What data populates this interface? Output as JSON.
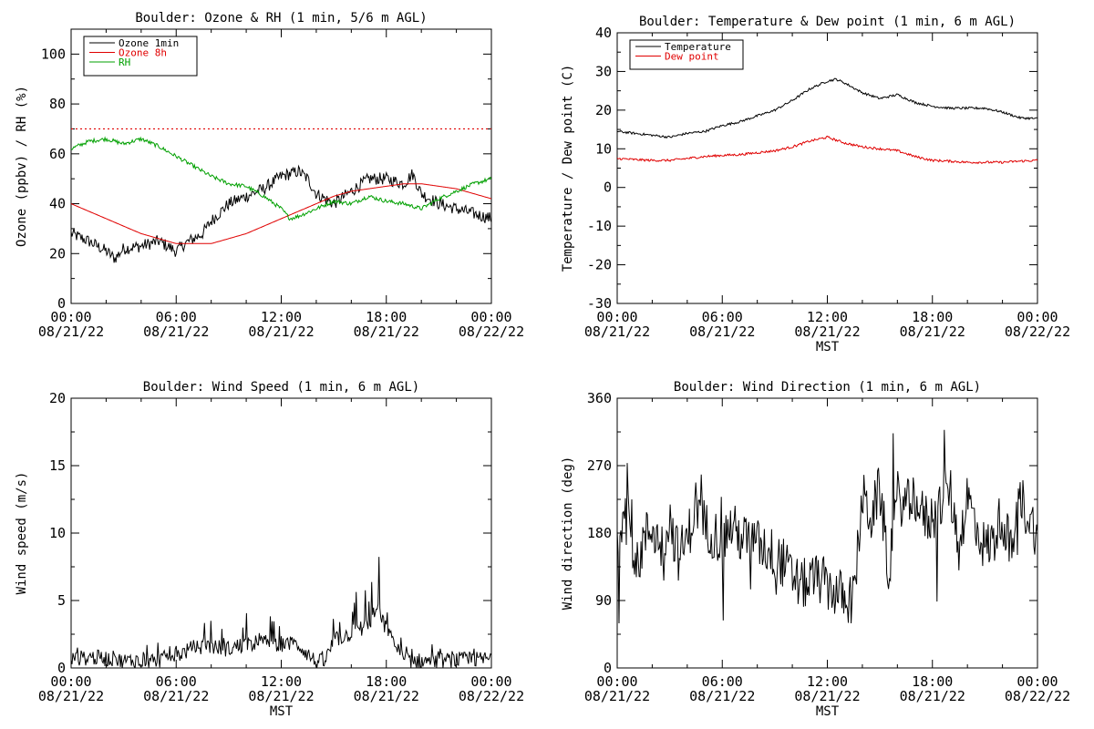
{
  "panels": {
    "ozone": {
      "title": "Boulder: Ozone & RH (1 min, 5/6 m AGL)",
      "ylabel": "Ozone (ppbv) / RH (%)",
      "xlabel": "",
      "y_ticks": [
        "0",
        "20",
        "40",
        "60",
        "80",
        "100"
      ],
      "x_ticks_time": [
        "00:00",
        "06:00",
        "12:00",
        "18:00",
        "00:00"
      ],
      "x_ticks_date": [
        "08/21/22",
        "08/21/22",
        "08/21/22",
        "08/21/22",
        "08/22/22"
      ],
      "legend": [
        {
          "label": "Ozone 1min",
          "color": "#000000"
        },
        {
          "label": "Ozone 8h",
          "color": "#e00000"
        },
        {
          "label": "RH",
          "color": "#00a000"
        }
      ]
    },
    "temp": {
      "title": "Boulder: Temperature & Dew point (1 min, 6 m AGL)",
      "ylabel": "Temperature / Dew point (C)",
      "xlabel": "MST",
      "y_ticks": [
        "-30",
        "-20",
        "-10",
        "0",
        "10",
        "20",
        "30",
        "40"
      ],
      "x_ticks_time": [
        "00:00",
        "06:00",
        "12:00",
        "18:00",
        "00:00"
      ],
      "x_ticks_date": [
        "08/21/22",
        "08/21/22",
        "08/21/22",
        "08/21/22",
        "08/22/22"
      ],
      "legend": [
        {
          "label": "Temperature",
          "color": "#000000"
        },
        {
          "label": "Dew point",
          "color": "#e00000"
        }
      ]
    },
    "wspd": {
      "title": "Boulder: Wind Speed (1 min, 6 m AGL)",
      "ylabel": "Wind speed (m/s)",
      "xlabel": "MST",
      "y_ticks": [
        "0",
        "5",
        "10",
        "15",
        "20"
      ],
      "x_ticks_time": [
        "00:00",
        "06:00",
        "12:00",
        "18:00",
        "00:00"
      ],
      "x_ticks_date": [
        "08/21/22",
        "08/21/22",
        "08/21/22",
        "08/21/22",
        "08/22/22"
      ]
    },
    "wdir": {
      "title": "Boulder: Wind Direction (1 min, 6 m AGL)",
      "ylabel": "Wind direction (deg)",
      "xlabel": "MST",
      "y_ticks": [
        "0",
        "90",
        "180",
        "270",
        "360"
      ],
      "x_ticks_time": [
        "00:00",
        "06:00",
        "12:00",
        "18:00",
        "00:00"
      ],
      "x_ticks_date": [
        "08/21/22",
        "08/21/22",
        "08/21/22",
        "08/21/22",
        "08/22/22"
      ]
    }
  },
  "chart_data": [
    {
      "type": "line",
      "title": "Boulder: Ozone & RH (1 min, 5/6 m AGL)",
      "xlabel": "",
      "ylabel": "Ozone (ppbv) / RH (%)",
      "x_unit": "hours MST from 08/21/22 00:00",
      "xlim": [
        0,
        24
      ],
      "ylim": [
        0,
        110
      ],
      "reference_line": {
        "y": 70,
        "style": "dotted",
        "color": "#e00000"
      },
      "series": [
        {
          "name": "Ozone 1min",
          "color": "#000000",
          "x": [
            0,
            1,
            2,
            2.5,
            3,
            4,
            5,
            6,
            6.5,
            7,
            7.5,
            8,
            9,
            10,
            11,
            12,
            12.5,
            13,
            13.5,
            14,
            15,
            16,
            17,
            18,
            19,
            19.5,
            20,
            21,
            22,
            23,
            24
          ],
          "y": [
            28,
            25,
            21,
            18,
            22,
            23,
            25,
            21,
            24,
            26,
            28,
            33,
            40,
            43,
            46,
            51,
            52,
            53,
            50,
            44,
            40,
            45,
            50,
            50,
            48,
            52,
            44,
            40,
            38,
            36,
            34
          ]
        },
        {
          "name": "Ozone 8h",
          "color": "#e00000",
          "x": [
            0,
            1,
            2,
            3,
            4,
            5,
            6,
            7,
            8,
            9,
            10,
            11,
            12,
            13,
            14,
            15,
            16,
            17,
            18,
            19,
            20,
            21,
            22,
            23,
            24
          ],
          "y": [
            40,
            37,
            34,
            31,
            28,
            26,
            24,
            24,
            24,
            26,
            28,
            31,
            34,
            37,
            40,
            43,
            45,
            46,
            47,
            48,
            48,
            47,
            46,
            44,
            42
          ]
        },
        {
          "name": "RH",
          "color": "#00a000",
          "x": [
            0,
            1,
            2,
            3,
            4,
            5,
            6,
            7,
            8,
            9,
            10,
            11,
            12,
            12.5,
            13,
            14,
            15,
            16,
            17,
            18,
            19,
            20,
            21,
            22,
            23,
            24
          ],
          "y": [
            62,
            65,
            66,
            64,
            66,
            63,
            59,
            55,
            51,
            48,
            47,
            43,
            38,
            34,
            35,
            38,
            41,
            40,
            43,
            41,
            40,
            38,
            42,
            45,
            48,
            50
          ]
        }
      ]
    },
    {
      "type": "line",
      "title": "Boulder: Temperature & Dew point (1 min, 6 m AGL)",
      "xlabel": "MST",
      "ylabel": "Temperature / Dew point (C)",
      "x_unit": "hours MST from 08/21/22 00:00",
      "xlim": [
        0,
        24
      ],
      "ylim": [
        -30,
        40
      ],
      "series": [
        {
          "name": "Temperature",
          "color": "#000000",
          "x": [
            0,
            1,
            2,
            3,
            4,
            5,
            6,
            7,
            8,
            9,
            10,
            11,
            12,
            12.5,
            13,
            14,
            15,
            16,
            17,
            18,
            19,
            20,
            21,
            22,
            23,
            24
          ],
          "y": [
            14.5,
            14,
            13.5,
            13,
            14,
            14.5,
            16,
            17,
            18.5,
            20,
            22.5,
            25.5,
            27.5,
            28,
            27,
            24.5,
            23,
            24,
            22,
            21,
            20.5,
            20.5,
            20.5,
            19.5,
            18,
            17.8
          ]
        },
        {
          "name": "Dew point",
          "color": "#e00000",
          "x": [
            0,
            1,
            2,
            3,
            4,
            5,
            6,
            7,
            8,
            9,
            10,
            11,
            12,
            13,
            14,
            15,
            16,
            17,
            18,
            19,
            20,
            21,
            22,
            23,
            24
          ],
          "y": [
            7.5,
            7.2,
            7,
            7,
            7.5,
            8,
            8.3,
            8.5,
            9,
            9.5,
            10.5,
            12,
            13,
            11.5,
            10.5,
            10,
            9.5,
            8,
            7,
            6.8,
            6.5,
            6.5,
            6.5,
            6.8,
            7
          ]
        }
      ]
    },
    {
      "type": "line",
      "title": "Boulder: Wind Speed (1 min, 6 m AGL)",
      "xlabel": "MST",
      "ylabel": "Wind speed (m/s)",
      "x_unit": "hours MST from 08/21/22 00:00",
      "xlim": [
        0,
        24
      ],
      "ylim": [
        0,
        20
      ],
      "series": [
        {
          "name": "",
          "color": "#000000",
          "x": [
            0,
            1,
            2,
            3,
            4,
            5,
            6,
            7,
            8,
            9,
            10,
            11,
            12,
            13,
            14,
            14.5,
            15,
            16,
            17,
            17.5,
            18,
            19,
            20,
            21,
            22,
            23,
            24
          ],
          "y": [
            0.6,
            0.8,
            0.7,
            0.5,
            0.6,
            0.6,
            0.9,
            1.5,
            1.6,
            1.4,
            1.8,
            1.9,
            1.8,
            1.7,
            0.4,
            0.5,
            2.0,
            2.6,
            3.2,
            4.5,
            2.8,
            0.6,
            0.5,
            0.5,
            0.6,
            0.6,
            0.7
          ]
        }
      ]
    },
    {
      "type": "line",
      "title": "Boulder: Wind Direction (1 min, 6 m AGL)",
      "xlabel": "MST",
      "ylabel": "Wind direction (deg)",
      "x_unit": "hours MST from 08/21/22 00:00",
      "xlim": [
        0,
        24
      ],
      "ylim": [
        0,
        360
      ],
      "series": [
        {
          "name": "",
          "color": "#000000",
          "x": [
            0,
            0.5,
            1,
            1.5,
            2,
            2.5,
            3,
            3.5,
            4,
            4.5,
            5,
            5.5,
            6,
            6.5,
            7,
            7.5,
            8,
            8.5,
            9,
            9.5,
            10,
            10.5,
            11,
            11.5,
            12,
            12.5,
            13,
            13.5,
            14,
            14.5,
            15,
            15.5,
            16,
            16.5,
            17,
            17.5,
            18,
            18.5,
            19,
            19.5,
            20,
            20.5,
            21,
            21.5,
            22,
            22.5,
            23,
            23.5,
            24
          ],
          "y": [
            150,
            250,
            120,
            170,
            190,
            160,
            200,
            150,
            170,
            220,
            190,
            180,
            170,
            190,
            175,
            170,
            165,
            160,
            150,
            140,
            120,
            110,
            115,
            120,
            110,
            100,
            95,
            90,
            230,
            200,
            240,
            130,
            230,
            215,
            230,
            200,
            200,
            220,
            240,
            160,
            230,
            190,
            160,
            170,
            210,
            150,
            230,
            200,
            180
          ]
        }
      ]
    }
  ]
}
